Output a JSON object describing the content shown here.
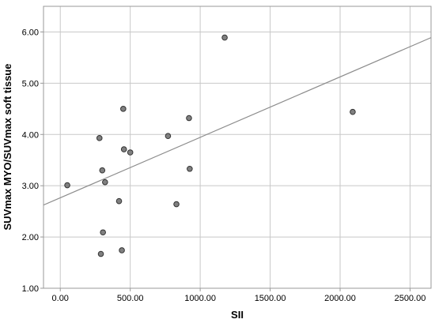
{
  "chart_data": {
    "type": "scatter",
    "xlabel": "SII",
    "ylabel": "SUVmax MYO/SUVmax soft tissue",
    "xlim": [
      -120,
      2650
    ],
    "ylim": [
      1.0,
      6.5
    ],
    "x_ticks": [
      0,
      500,
      1000,
      1500,
      2000,
      2500
    ],
    "x_tick_labels": [
      "0.00",
      "500.00",
      "1000.00",
      "1500.00",
      "2000.00",
      "2500.00"
    ],
    "y_ticks": [
      1,
      2,
      3,
      4,
      5,
      6
    ],
    "y_tick_labels": [
      "1.00",
      "2.00",
      "3.00",
      "4.00",
      "5.00",
      "6.00"
    ],
    "grid": true,
    "points": [
      {
        "x": 50,
        "y": 3.01
      },
      {
        "x": 280,
        "y": 3.93
      },
      {
        "x": 290,
        "y": 1.67
      },
      {
        "x": 300,
        "y": 3.3
      },
      {
        "x": 305,
        "y": 2.09
      },
      {
        "x": 320,
        "y": 3.07
      },
      {
        "x": 420,
        "y": 2.7
      },
      {
        "x": 440,
        "y": 1.74
      },
      {
        "x": 450,
        "y": 4.5
      },
      {
        "x": 455,
        "y": 3.71
      },
      {
        "x": 500,
        "y": 3.65
      },
      {
        "x": 770,
        "y": 3.97
      },
      {
        "x": 830,
        "y": 2.64
      },
      {
        "x": 920,
        "y": 4.32
      },
      {
        "x": 925,
        "y": 3.33
      },
      {
        "x": 1175,
        "y": 5.89
      },
      {
        "x": 2090,
        "y": 4.44
      }
    ],
    "fit_line": {
      "intercept": 2.765,
      "slope": 0.001179
    },
    "colors": {
      "point_fill": "#808080",
      "point_stroke": "#333333",
      "fit_line": "#8c8c8c",
      "grid": "#c8c8c8",
      "axis": "#999999"
    }
  }
}
